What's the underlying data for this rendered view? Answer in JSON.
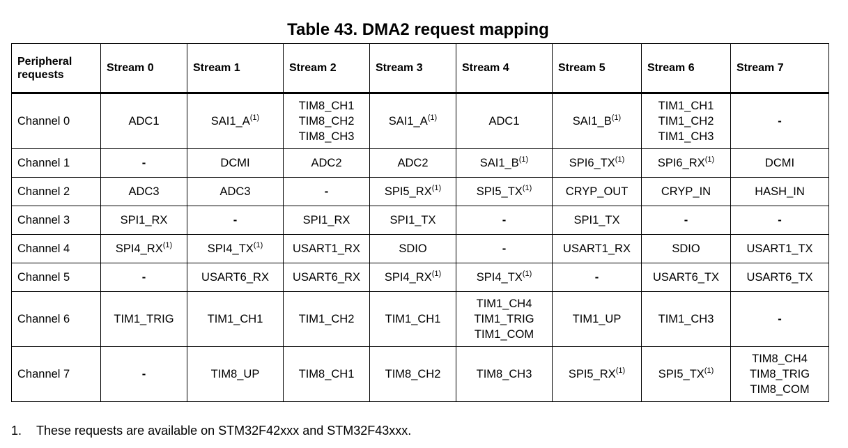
{
  "title": "Table 43. DMA2 request mapping",
  "table": {
    "headers": [
      "Peripheral requests",
      "Stream 0",
      "Stream 1",
      "Stream 2",
      "Stream 3",
      "Stream 4",
      "Stream 5",
      "Stream 6",
      "Stream 7"
    ],
    "rows": [
      {
        "label": "Channel 0",
        "tall": true,
        "cells": [
          [
            {
              "t": "ADC1"
            }
          ],
          [
            {
              "t": "SAI1_A",
              "sup": "(1)"
            }
          ],
          [
            {
              "t": "TIM8_CH1"
            },
            {
              "t": "TIM8_CH2"
            },
            {
              "t": "TIM8_CH3"
            }
          ],
          [
            {
              "t": "SAI1_A",
              "sup": "(1)"
            }
          ],
          [
            {
              "t": "ADC1"
            }
          ],
          [
            {
              "t": "SAI1_B",
              "sup": "(1)"
            }
          ],
          [
            {
              "t": "TIM1_CH1"
            },
            {
              "t": "TIM1_CH2"
            },
            {
              "t": "TIM1_CH3"
            }
          ],
          [
            {
              "t": "-"
            }
          ]
        ]
      },
      {
        "label": "Channel 1",
        "tall": false,
        "cells": [
          [
            {
              "t": "-"
            }
          ],
          [
            {
              "t": "DCMI"
            }
          ],
          [
            {
              "t": "ADC2"
            }
          ],
          [
            {
              "t": "ADC2"
            }
          ],
          [
            {
              "t": "SAI1_B",
              "sup": "(1)"
            }
          ],
          [
            {
              "t": "SPI6_TX",
              "sup": "(1)"
            }
          ],
          [
            {
              "t": "SPI6_RX",
              "sup": "(1)"
            }
          ],
          [
            {
              "t": "DCMI"
            }
          ]
        ]
      },
      {
        "label": "Channel 2",
        "tall": false,
        "cells": [
          [
            {
              "t": "ADC3"
            }
          ],
          [
            {
              "t": "ADC3"
            }
          ],
          [
            {
              "t": "-"
            }
          ],
          [
            {
              "t": "SPI5_RX",
              "sup": "(1)"
            }
          ],
          [
            {
              "t": "SPI5_TX",
              "sup": "(1)"
            }
          ],
          [
            {
              "t": "CRYP_OUT"
            }
          ],
          [
            {
              "t": "CRYP_IN"
            }
          ],
          [
            {
              "t": "HASH_IN"
            }
          ]
        ]
      },
      {
        "label": "Channel 3",
        "tall": false,
        "cells": [
          [
            {
              "t": "SPI1_RX"
            }
          ],
          [
            {
              "t": "-"
            }
          ],
          [
            {
              "t": "SPI1_RX"
            }
          ],
          [
            {
              "t": "SPI1_TX"
            }
          ],
          [
            {
              "t": "-"
            }
          ],
          [
            {
              "t": "SPI1_TX"
            }
          ],
          [
            {
              "t": "-"
            }
          ],
          [
            {
              "t": "-"
            }
          ]
        ]
      },
      {
        "label": "Channel 4",
        "tall": false,
        "cells": [
          [
            {
              "t": "SPI4_RX",
              "sup": "(1)"
            }
          ],
          [
            {
              "t": "SPI4_TX",
              "sup": "(1)"
            }
          ],
          [
            {
              "t": "USART1_RX"
            }
          ],
          [
            {
              "t": "SDIO"
            }
          ],
          [
            {
              "t": "-"
            }
          ],
          [
            {
              "t": "USART1_RX"
            }
          ],
          [
            {
              "t": "SDIO"
            }
          ],
          [
            {
              "t": "USART1_TX"
            }
          ]
        ]
      },
      {
        "label": "Channel 5",
        "tall": false,
        "cells": [
          [
            {
              "t": "-"
            }
          ],
          [
            {
              "t": "USART6_RX"
            }
          ],
          [
            {
              "t": "USART6_RX"
            }
          ],
          [
            {
              "t": "SPI4_RX",
              "sup": "(1)"
            }
          ],
          [
            {
              "t": "SPI4_TX",
              "sup": "(1)"
            }
          ],
          [
            {
              "t": "-"
            }
          ],
          [
            {
              "t": "USART6_TX"
            }
          ],
          [
            {
              "t": "USART6_TX"
            }
          ]
        ]
      },
      {
        "label": "Channel 6",
        "tall": true,
        "cells": [
          [
            {
              "t": "TIM1_TRIG"
            }
          ],
          [
            {
              "t": "TIM1_CH1"
            }
          ],
          [
            {
              "t": "TIM1_CH2"
            }
          ],
          [
            {
              "t": "TIM1_CH1"
            }
          ],
          [
            {
              "t": "TIM1_CH4"
            },
            {
              "t": "TIM1_TRIG"
            },
            {
              "t": "TIM1_COM"
            }
          ],
          [
            {
              "t": "TIM1_UP"
            }
          ],
          [
            {
              "t": "TIM1_CH3"
            }
          ],
          [
            {
              "t": "-"
            }
          ]
        ]
      },
      {
        "label": "Channel 7",
        "tall": true,
        "cells": [
          [
            {
              "t": "-"
            }
          ],
          [
            {
              "t": "TIM8_UP"
            }
          ],
          [
            {
              "t": "TIM8_CH1"
            }
          ],
          [
            {
              "t": "TIM8_CH2"
            }
          ],
          [
            {
              "t": "TIM8_CH3"
            }
          ],
          [
            {
              "t": "SPI5_RX",
              "sup": "(1)"
            }
          ],
          [
            {
              "t": "SPI5_TX",
              "sup": "(1)"
            }
          ],
          [
            {
              "t": "TIM8_CH4"
            },
            {
              "t": "TIM8_TRIG"
            },
            {
              "t": "TIM8_COM"
            }
          ]
        ]
      }
    ]
  },
  "footnote": {
    "number": "1.",
    "text": "These requests are available on STM32F42xxx and STM32F43xxx."
  }
}
